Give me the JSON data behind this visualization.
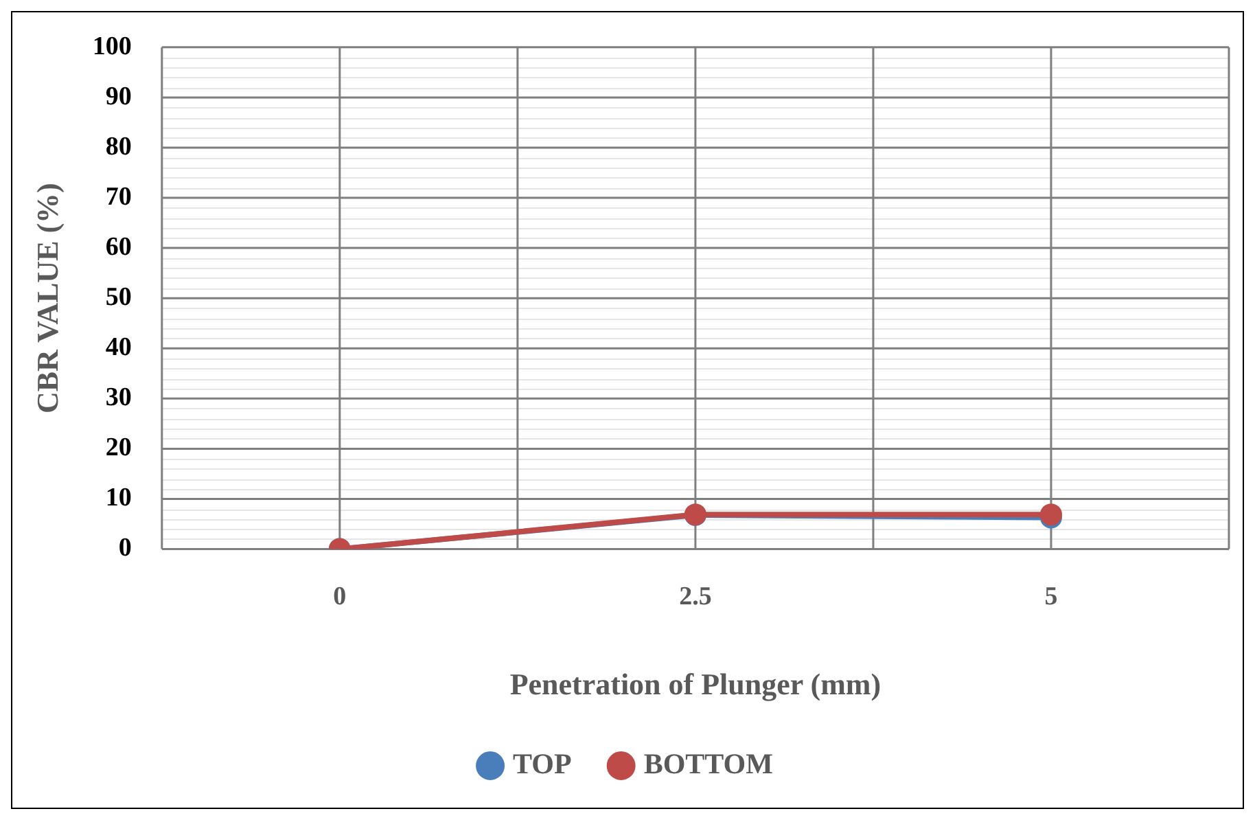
{
  "chart_data": {
    "type": "line",
    "xlabel": "Penetration of Plunger (mm)",
    "ylabel": "CBR VALUE (%)",
    "categories": [
      "0",
      "2.5",
      "5"
    ],
    "series": [
      {
        "name": "TOP",
        "color": "#4a7ebb",
        "values": [
          0,
          6.8,
          6.3
        ]
      },
      {
        "name": "BOTTOM",
        "color": "#be4b48",
        "values": [
          0,
          6.9,
          6.9
        ]
      }
    ],
    "ylim": [
      0,
      100
    ],
    "yticks": [
      0,
      10,
      20,
      30,
      40,
      50,
      60,
      70,
      80,
      90,
      100
    ],
    "grid": true,
    "legend": "bottom",
    "marker": "circle",
    "line_style": "solid"
  }
}
